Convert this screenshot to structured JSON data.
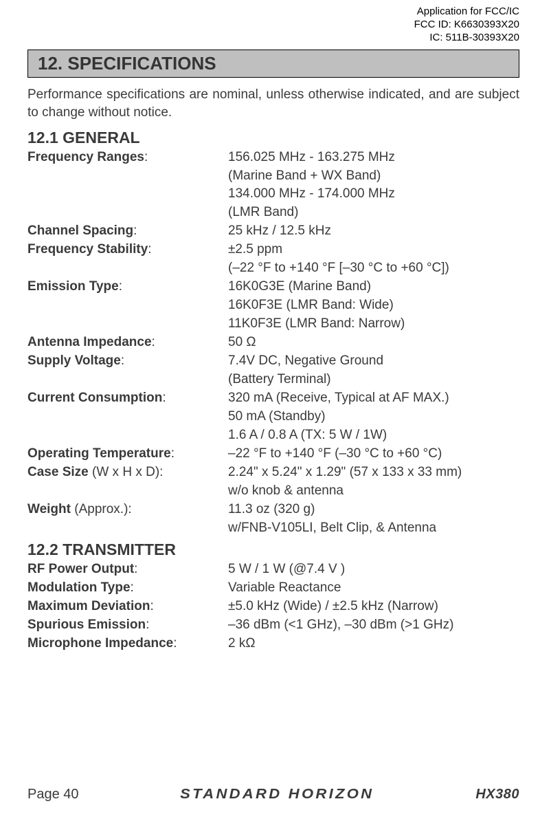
{
  "topInfo": {
    "line1": "Application for FCC/IC",
    "line2": "FCC ID: K6630393X20",
    "line3": "IC: 511B-30393X20"
  },
  "sectionHeader": "12. SPECIFICATIONS",
  "intro": "Performance specifications are nominal, unless otherwise indicated, and are subject to change without notice.",
  "general": {
    "heading": "12.1 GENERAL",
    "rows": [
      {
        "labelBold": "Frequency Ranges",
        "labelRest": ":",
        "values": [
          "156.025 MHz - 163.275 MHz",
          "(Marine Band + WX Band)",
          "134.000 MHz - 174.000 MHz",
          "(LMR Band)"
        ]
      },
      {
        "labelBold": "Channel Spacing",
        "labelRest": ":",
        "values": [
          "25 kHz / 12.5 kHz"
        ]
      },
      {
        "labelBold": "Frequency Stability",
        "labelRest": ":",
        "values": [
          "±2.5 ppm",
          "(–22 °F to +140 °F [–30 °C to +60 °C])"
        ]
      },
      {
        "labelBold": "Emission Type",
        "labelRest": ":",
        "values": [
          "16K0G3E (Marine Band)",
          "16K0F3E (LMR Band: Wide)",
          "11K0F3E (LMR Band: Narrow)"
        ]
      },
      {
        "labelBold": "Antenna Impedance",
        "labelRest": ":",
        "values": [
          "50 Ω"
        ]
      },
      {
        "labelBold": "Supply Voltage",
        "labelRest": ":",
        "values": [
          "7.4V DC, Negative Ground",
          "(Battery Terminal)"
        ]
      },
      {
        "labelBold": "Current Consumption",
        "labelRest": ":",
        "values": [
          "320 mA (Receive, Typical at AF MAX.)",
          "50 mA (Standby)",
          "1.6 A / 0.8 A (TX: 5 W / 1W)"
        ]
      },
      {
        "labelBold": "Operating Temperature",
        "labelRest": ":",
        "values": [
          "–22 °F to +140 °F (–30 °C to +60 °C)"
        ]
      },
      {
        "labelBold": "Case Size",
        "labelRest": " (W x H x D):",
        "values": [
          "2.24\" x 5.24\" x 1.29\" (57 x 133 x 33 mm)",
          "w/o knob & antenna"
        ]
      },
      {
        "labelBold": "Weight",
        "labelRest": " (Approx.):",
        "values": [
          "11.3 oz (320 g)",
          "w/FNB-V105LI, Belt Clip, & Antenna"
        ]
      }
    ]
  },
  "transmitter": {
    "heading": "12.2 TRANSMITTER",
    "rows": [
      {
        "labelBold": "RF Power Output",
        "labelRest": ":",
        "values": [
          "5 W / 1 W (@7.4 V )"
        ]
      },
      {
        "labelBold": "Modulation Type",
        "labelRest": ":",
        "values": [
          "Variable Reactance"
        ]
      },
      {
        "labelBold": "Maximum Deviation",
        "labelRest": ":",
        "values": [
          "±5.0 kHz (Wide) / ±2.5 kHz (Narrow)"
        ]
      },
      {
        "labelBold": "Spurious Emission",
        "labelRest": ":",
        "values": [
          "–36 dBm (<1 GHz), –30 dBm (>1 GHz)"
        ]
      },
      {
        "labelBold": "Microphone Impedance",
        "labelRest": ":",
        "values": [
          "2 kΩ"
        ]
      }
    ]
  },
  "footer": {
    "pageLabel": "Page 40",
    "logoText": "STANDARD HORIZON",
    "model": "HX380"
  }
}
